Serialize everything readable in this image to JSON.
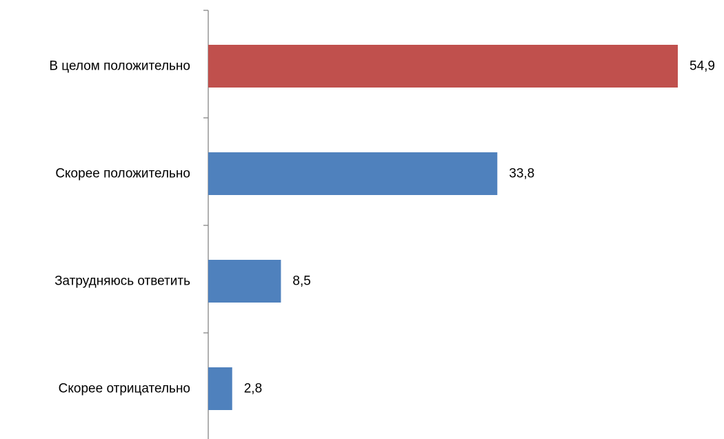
{
  "chart_data": {
    "type": "bar",
    "orientation": "horizontal",
    "categories": [
      "В целом положительно",
      "Скорее положительно",
      "Затрудняюсь ответить",
      "Скорее отрицательно"
    ],
    "values": [
      54.9,
      33.8,
      8.5,
      2.8
    ],
    "value_labels": [
      "54,9",
      "33,8",
      "8,5",
      "2,8"
    ],
    "highlight_index": 0,
    "colors": {
      "highlight": "#c0504d",
      "default": "#4f81bd",
      "axis": "#868686"
    },
    "title": "",
    "xlabel": "",
    "ylabel": "",
    "xlim": [
      0,
      54.9
    ],
    "grid": false,
    "legend": "none"
  }
}
